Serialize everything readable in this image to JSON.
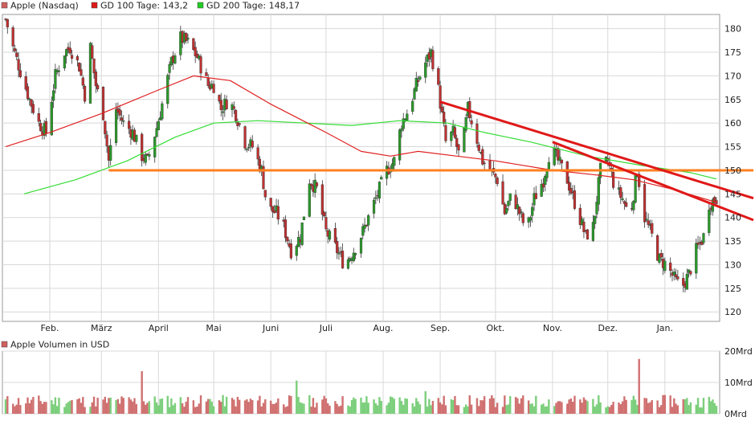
{
  "legend": {
    "main": [
      {
        "label": "Apple (Nasdaq)",
        "color": "#d06060"
      },
      {
        "label": "GD 100 Tage: 143,2",
        "color": "#dd1a1a"
      },
      {
        "label": "GD 200 Tage: 148,17",
        "color": "#22cc22"
      }
    ],
    "volume": [
      {
        "label": "Apple Volumen in USD",
        "color": "#d06060"
      }
    ]
  },
  "colors": {
    "up_candle": "#2a9a2a",
    "down_candle": "#c03030",
    "ma100": "#e02020",
    "ma200": "#33dd33",
    "support_line": "#ff8020",
    "trend_line": "#e01818",
    "grid": "#d8d8d8"
  },
  "chart_data": [
    {
      "type": "candlestick",
      "name": "Apple (Nasdaq)",
      "ylim": [
        118,
        183
      ],
      "yticks": [
        120,
        125,
        130,
        135,
        140,
        145,
        150,
        155,
        160,
        165,
        170,
        175,
        180
      ],
      "x_range": [
        "2015-01-08",
        "2016-01-29"
      ],
      "x_ticks": [
        {
          "label": "Feb.",
          "date": "2015-02-01"
        },
        {
          "label": "März",
          "date": "2015-03-01"
        },
        {
          "label": "April",
          "date": "2015-04-01"
        },
        {
          "label": "Mai",
          "date": "2015-05-01"
        },
        {
          "label": "Juni",
          "date": "2015-06-01"
        },
        {
          "label": "Juli",
          "date": "2015-07-01"
        },
        {
          "label": "Aug.",
          "date": "2015-08-01"
        },
        {
          "label": "Sep.",
          "date": "2015-09-01"
        },
        {
          "label": "Okt.",
          "date": "2015-10-01"
        },
        {
          "label": "Nov.",
          "date": "2015-11-01"
        },
        {
          "label": "Dez.",
          "date": "2015-12-01"
        },
        {
          "label": "Jan.",
          "date": "2016-01-01"
        }
      ],
      "price_path": [
        [
          "2015-01-08",
          182
        ],
        [
          "2015-01-12",
          176
        ],
        [
          "2015-01-16",
          171
        ],
        [
          "2015-01-21",
          165
        ],
        [
          "2015-01-26",
          160
        ],
        [
          "2015-01-30",
          158
        ],
        [
          "2015-02-04",
          170
        ],
        [
          "2015-02-09",
          175
        ],
        [
          "2015-02-12",
          176
        ],
        [
          "2015-02-17",
          172
        ],
        [
          "2015-02-20",
          166
        ],
        [
          "2015-02-23",
          176
        ],
        [
          "2015-02-26",
          168
        ],
        [
          "2015-03-02",
          162
        ],
        [
          "2015-03-05",
          152
        ],
        [
          "2015-03-09",
          163
        ],
        [
          "2015-03-13",
          160
        ],
        [
          "2015-03-18",
          158
        ],
        [
          "2015-03-23",
          153
        ],
        [
          "2015-03-26",
          152
        ],
        [
          "2015-03-31",
          159
        ],
        [
          "2015-04-03",
          164
        ],
        [
          "2015-04-08",
          173
        ],
        [
          "2015-04-13",
          178
        ],
        [
          "2015-04-17",
          177
        ],
        [
          "2015-04-22",
          174
        ],
        [
          "2015-04-28",
          168
        ],
        [
          "2015-05-01",
          168
        ],
        [
          "2015-05-05",
          163
        ],
        [
          "2015-05-09",
          165
        ],
        [
          "2015-05-13",
          162
        ],
        [
          "2015-05-18",
          156
        ],
        [
          "2015-05-22",
          155
        ],
        [
          "2015-05-27",
          150
        ],
        [
          "2015-05-30",
          142
        ],
        [
          "2015-06-04",
          141
        ],
        [
          "2015-06-08",
          138
        ],
        [
          "2015-06-12",
          133
        ],
        [
          "2015-06-17",
          136
        ],
        [
          "2015-06-22",
          148
        ],
        [
          "2015-06-26",
          146
        ],
        [
          "2015-07-01",
          137
        ],
        [
          "2015-07-07",
          133
        ],
        [
          "2015-07-11",
          130
        ],
        [
          "2015-07-16",
          133
        ],
        [
          "2015-07-21",
          137
        ],
        [
          "2015-07-25",
          141
        ],
        [
          "2015-07-29",
          145
        ],
        [
          "2015-08-03",
          150
        ],
        [
          "2015-08-07",
          152
        ],
        [
          "2015-08-11",
          160
        ],
        [
          "2015-08-15",
          163
        ],
        [
          "2015-08-19",
          168
        ],
        [
          "2015-08-23",
          172
        ],
        [
          "2015-08-27",
          175
        ],
        [
          "2015-08-31",
          167
        ],
        [
          "2015-09-04",
          156
        ],
        [
          "2015-09-08",
          158
        ],
        [
          "2015-09-12",
          152
        ],
        [
          "2015-09-16",
          163
        ],
        [
          "2015-09-20",
          158
        ],
        [
          "2015-09-24",
          152
        ],
        [
          "2015-09-28",
          150
        ],
        [
          "2015-10-02",
          148
        ],
        [
          "2015-10-06",
          141
        ],
        [
          "2015-10-10",
          145
        ],
        [
          "2015-10-14",
          141
        ],
        [
          "2015-10-18",
          137
        ],
        [
          "2015-10-22",
          144
        ],
        [
          "2015-10-27",
          148
        ],
        [
          "2015-10-31",
          155
        ],
        [
          "2015-11-04",
          152
        ],
        [
          "2015-11-09",
          148
        ],
        [
          "2015-11-14",
          142
        ],
        [
          "2015-11-19",
          136
        ],
        [
          "2015-11-23",
          138
        ],
        [
          "2015-11-27",
          150
        ],
        [
          "2015-12-01",
          152
        ],
        [
          "2015-12-05",
          146
        ],
        [
          "2015-12-09",
          144
        ],
        [
          "2015-12-13",
          140
        ],
        [
          "2015-12-17",
          150
        ],
        [
          "2015-12-21",
          140
        ],
        [
          "2015-12-25",
          136
        ],
        [
          "2015-12-29",
          131
        ],
        [
          "2016-01-02",
          130
        ],
        [
          "2016-01-06",
          127
        ],
        [
          "2016-01-10",
          125
        ],
        [
          "2016-01-14",
          128
        ],
        [
          "2016-01-18",
          133
        ],
        [
          "2016-01-22",
          136
        ],
        [
          "2016-01-25",
          143
        ],
        [
          "2016-01-29",
          144
        ]
      ],
      "ma100": [
        [
          "2015-01-08",
          155
        ],
        [
          "2015-02-01",
          158
        ],
        [
          "2015-03-01",
          162
        ],
        [
          "2015-04-01",
          167
        ],
        [
          "2015-04-20",
          170
        ],
        [
          "2015-05-10",
          169
        ],
        [
          "2015-06-01",
          164
        ],
        [
          "2015-07-01",
          158
        ],
        [
          "2015-07-20",
          154
        ],
        [
          "2015-08-05",
          153
        ],
        [
          "2015-08-20",
          154
        ],
        [
          "2015-09-10",
          153
        ],
        [
          "2015-10-01",
          152
        ],
        [
          "2015-11-01",
          150
        ],
        [
          "2015-11-25",
          149
        ],
        [
          "2015-12-15",
          148
        ],
        [
          "2016-01-05",
          146
        ],
        [
          "2016-01-29",
          143.2
        ]
      ],
      "ma200": [
        [
          "2015-01-18",
          145
        ],
        [
          "2015-02-15",
          148
        ],
        [
          "2015-03-15",
          152
        ],
        [
          "2015-04-10",
          157
        ],
        [
          "2015-05-01",
          160
        ],
        [
          "2015-05-25",
          160.5
        ],
        [
          "2015-06-20",
          160
        ],
        [
          "2015-07-15",
          159.5
        ],
        [
          "2015-08-10",
          160.5
        ],
        [
          "2015-09-05",
          160
        ],
        [
          "2015-09-25",
          158
        ],
        [
          "2015-10-20",
          156
        ],
        [
          "2015-11-20",
          153
        ],
        [
          "2015-12-20",
          151
        ],
        [
          "2016-01-15",
          149.5
        ],
        [
          "2016-01-29",
          148.17
        ]
      ],
      "support_line": {
        "value": 150,
        "from": "2015-03-05",
        "to": "2016-01-29"
      },
      "trend_lines": [
        {
          "from": [
            "2015-09-01",
            164.5
          ],
          "to": [
            "2016-01-29",
            146.5
          ]
        },
        {
          "from": [
            "2015-11-01",
            156
          ],
          "to": [
            "2016-01-29",
            142.5
          ]
        }
      ]
    },
    {
      "type": "bar",
      "name": "Apple Volumen in USD",
      "ylim": [
        0,
        20
      ],
      "yticks": [
        {
          "value": 0,
          "label": "0Mrd"
        },
        {
          "value": 10,
          "label": "10Mrd"
        },
        {
          "value": 20,
          "label": "20Mrd"
        }
      ],
      "spikes": [
        {
          "date": "2015-03-23",
          "value": 13.6
        },
        {
          "date": "2015-06-15",
          "value": 10.6
        },
        {
          "date": "2015-08-24",
          "value": 7.2
        },
        {
          "date": "2015-12-18",
          "value": 17.5
        }
      ],
      "typical_range": [
        2,
        6
      ]
    }
  ]
}
